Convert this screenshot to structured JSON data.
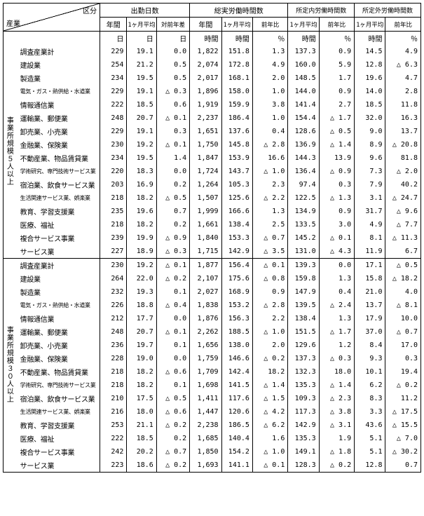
{
  "corner": {
    "top": "区分",
    "left": "産業"
  },
  "groups": {
    "g1": "出勤日数",
    "g2": "総実労働時間数",
    "g3": "所定内労働時間数",
    "g4": "所定外労働時間数"
  },
  "subcols": {
    "annual": "年間",
    "monthAvg": "1ヶ月平均",
    "diffPrev": "対前年差",
    "yoy": "前年比"
  },
  "units": {
    "day": "日",
    "hour": "時間",
    "pct": "％"
  },
  "sections": [
    {
      "label": "事業所規模５人以上"
    },
    {
      "label": "事業所規模３０人以上"
    }
  ],
  "industries": [
    "調査産業計",
    "建設業",
    "製造業",
    "電気・ガス・熱供給・水道業",
    "情報通信業",
    "運輸業、郵便業",
    "卸売業、小売業",
    "金融業、保険業",
    "不動産業、物品賃貸業",
    "学術研究、専門技術サービス業",
    "宿泊業、飲食サービス業",
    "生活関連サービス業、娯楽業",
    "教育、学習支援業",
    "医療、福祉",
    "複合サービス事業",
    "サービス業"
  ],
  "data": {
    "sec1": [
      [
        "229",
        "19.1",
        "0.0",
        "1,822",
        "151.8",
        "1.3",
        "137.3",
        "0.9",
        "14.5",
        "4.9"
      ],
      [
        "254",
        "21.2",
        "0.5",
        "2,074",
        "172.8",
        "4.9",
        "160.0",
        "5.9",
        "12.8",
        "△ 6.3"
      ],
      [
        "234",
        "19.5",
        "0.5",
        "2,017",
        "168.1",
        "2.0",
        "148.5",
        "1.7",
        "19.6",
        "4.7"
      ],
      [
        "229",
        "19.1",
        "△ 0.3",
        "1,896",
        "158.0",
        "1.0",
        "144.0",
        "0.9",
        "14.0",
        "2.8"
      ],
      [
        "222",
        "18.5",
        "0.6",
        "1,919",
        "159.9",
        "3.8",
        "141.4",
        "2.7",
        "18.5",
        "11.8"
      ],
      [
        "248",
        "20.7",
        "△ 0.1",
        "2,237",
        "186.4",
        "1.0",
        "154.4",
        "△ 1.7",
        "32.0",
        "16.3"
      ],
      [
        "229",
        "19.1",
        "0.3",
        "1,651",
        "137.6",
        "0.4",
        "128.6",
        "△ 0.5",
        "9.0",
        "13.7"
      ],
      [
        "230",
        "19.2",
        "△ 0.1",
        "1,750",
        "145.8",
        "△ 2.8",
        "136.9",
        "△ 1.4",
        "8.9",
        "△ 20.8"
      ],
      [
        "234",
        "19.5",
        "1.4",
        "1,847",
        "153.9",
        "16.6",
        "144.3",
        "13.9",
        "9.6",
        "81.8"
      ],
      [
        "220",
        "18.3",
        "0.0",
        "1,724",
        "143.7",
        "△ 1.0",
        "136.4",
        "△ 0.9",
        "7.3",
        "△ 2.0"
      ],
      [
        "203",
        "16.9",
        "0.2",
        "1,264",
        "105.3",
        "2.3",
        "97.4",
        "0.3",
        "7.9",
        "40.2"
      ],
      [
        "218",
        "18.2",
        "△ 0.5",
        "1,507",
        "125.6",
        "△ 2.2",
        "122.5",
        "△ 1.3",
        "3.1",
        "△ 24.7"
      ],
      [
        "235",
        "19.6",
        "0.7",
        "1,999",
        "166.6",
        "1.3",
        "134.9",
        "0.9",
        "31.7",
        "△ 9.6"
      ],
      [
        "218",
        "18.2",
        "0.2",
        "1,661",
        "138.4",
        "2.5",
        "133.5",
        "3.0",
        "4.9",
        "△ 7.7"
      ],
      [
        "239",
        "19.9",
        "△ 0.9",
        "1,840",
        "153.3",
        "△ 0.7",
        "145.2",
        "△ 0.1",
        "8.1",
        "△ 11.3"
      ],
      [
        "227",
        "18.9",
        "△ 0.3",
        "1,715",
        "142.9",
        "△ 3.5",
        "131.0",
        "△ 4.3",
        "11.9",
        "6.7"
      ]
    ],
    "sec2": [
      [
        "230",
        "19.2",
        "△ 0.1",
        "1,877",
        "156.4",
        "△ 0.1",
        "139.3",
        "0.0",
        "17.1",
        "△ 0.5"
      ],
      [
        "264",
        "22.0",
        "△ 0.2",
        "2,107",
        "175.6",
        "△ 0.8",
        "159.8",
        "1.3",
        "15.8",
        "△ 18.2"
      ],
      [
        "232",
        "19.3",
        "0.1",
        "2,027",
        "168.9",
        "0.9",
        "147.9",
        "0.4",
        "21.0",
        "4.0"
      ],
      [
        "226",
        "18.8",
        "△ 0.4",
        "1,838",
        "153.2",
        "△ 2.8",
        "139.5",
        "△ 2.4",
        "13.7",
        "△ 8.1"
      ],
      [
        "212",
        "17.7",
        "0.0",
        "1,876",
        "156.3",
        "2.2",
        "138.4",
        "1.3",
        "17.9",
        "10.0"
      ],
      [
        "248",
        "20.7",
        "△ 0.1",
        "2,262",
        "188.5",
        "△ 1.0",
        "151.5",
        "△ 1.7",
        "37.0",
        "△ 0.7"
      ],
      [
        "236",
        "19.7",
        "0.1",
        "1,656",
        "138.0",
        "2.0",
        "129.6",
        "1.2",
        "8.4",
        "17.0"
      ],
      [
        "228",
        "19.0",
        "0.0",
        "1,759",
        "146.6",
        "△ 0.2",
        "137.3",
        "△ 0.3",
        "9.3",
        "0.3"
      ],
      [
        "218",
        "18.2",
        "△ 0.6",
        "1,709",
        "142.4",
        "18.2",
        "132.3",
        "18.0",
        "10.1",
        "19.4"
      ],
      [
        "218",
        "18.2",
        "0.1",
        "1,698",
        "141.5",
        "△ 1.4",
        "135.3",
        "△ 1.4",
        "6.2",
        "△ 0.2"
      ],
      [
        "210",
        "17.5",
        "△ 0.5",
        "1,411",
        "117.6",
        "△ 1.5",
        "109.3",
        "△ 2.3",
        "8.3",
        "11.2"
      ],
      [
        "216",
        "18.0",
        "△ 0.6",
        "1,447",
        "120.6",
        "△ 4.2",
        "117.3",
        "△ 3.8",
        "3.3",
        "△ 17.5"
      ],
      [
        "253",
        "21.1",
        "△ 0.2",
        "2,238",
        "186.5",
        "△ 6.2",
        "142.9",
        "△ 3.1",
        "43.6",
        "△ 15.5"
      ],
      [
        "222",
        "18.5",
        "0.2",
        "1,685",
        "140.4",
        "1.6",
        "135.3",
        "1.9",
        "5.1",
        "△ 7.0"
      ],
      [
        "242",
        "20.2",
        "△ 0.7",
        "1,850",
        "154.2",
        "△ 1.0",
        "149.1",
        "△ 1.8",
        "5.1",
        "△ 30.2"
      ],
      [
        "223",
        "18.6",
        "△ 0.2",
        "1,693",
        "141.1",
        "△ 0.1",
        "128.3",
        "△ 0.2",
        "12.8",
        "0.7"
      ]
    ]
  }
}
